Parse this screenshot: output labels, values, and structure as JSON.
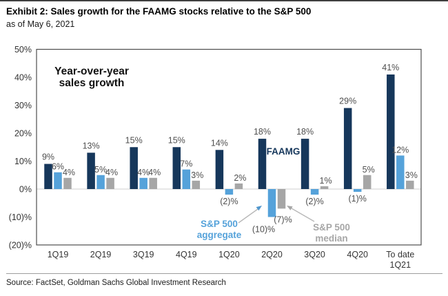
{
  "header": {
    "title": "Exhibit 2: Sales growth for the FAAMG stocks relative to the S&P 500",
    "subtitle": "as of May 6, 2021"
  },
  "source": "Source: FactSet, Goldman Sachs Global Investment Research",
  "colors": {
    "faamg": "#16375B",
    "sp500_aggregate": "#55A2DA",
    "sp500_median": "#A6A6A6",
    "value_label": "#4F4F4F",
    "axis_text": "#333333",
    "plot_border": "#4D4D4D",
    "zero_line": "#CFCFCF",
    "arrow": "#B8B8B8",
    "aggregate_arrowhead": "#5096CD"
  },
  "chart_data": {
    "type": "bar",
    "title": "Exhibit 2: Sales growth for the FAAMG stocks relative to the S&P 500",
    "subtitle": "as of May 6, 2021",
    "xlabel": "",
    "ylabel": "Year-over-year sales growth (%)",
    "ylim": [
      -20,
      50
    ],
    "grid": "zero line only",
    "legend_position": "in-plot text annotations with arrows",
    "categories": [
      "1Q19",
      "2Q19",
      "3Q19",
      "4Q19",
      "1Q20",
      "2Q20",
      "3Q20",
      "4Q20",
      "To date\n1Q21"
    ],
    "series": [
      {
        "name": "FAAMG",
        "color": "#16375B",
        "values": [
          9,
          13,
          15,
          15,
          14,
          18,
          18,
          29,
          41
        ],
        "labels": [
          "9%",
          "13%",
          "15%",
          "15%",
          "14%",
          "18%",
          "18%",
          "29%",
          "41%"
        ]
      },
      {
        "name": "S&P 500 aggregate",
        "color": "#55A2DA",
        "values": [
          6,
          5,
          4,
          7,
          -2,
          -10,
          -2,
          -1,
          12
        ],
        "labels": [
          "6%",
          "5%",
          "4%",
          "7%",
          "(2)%",
          "(10)%",
          "(2)%",
          "(1)%",
          "12%"
        ]
      },
      {
        "name": "S&P 500 median",
        "color": "#A6A6A6",
        "values": [
          4,
          4,
          4,
          3,
          2,
          -7,
          1,
          5,
          3
        ],
        "labels": [
          "4%",
          "4%",
          "4%",
          "3%",
          "2%",
          "(7)%",
          "1%",
          "5%",
          "3%"
        ]
      }
    ],
    "y_ticks": [
      {
        "value": 50,
        "label": "50%"
      },
      {
        "value": 40,
        "label": "40%"
      },
      {
        "value": 30,
        "label": "30%"
      },
      {
        "value": 20,
        "label": "20%"
      },
      {
        "value": 10,
        "label": "10%"
      },
      {
        "value": 0,
        "label": "0%"
      },
      {
        "value": -10,
        "label": "(10)%"
      },
      {
        "value": -20,
        "label": "(20)%"
      }
    ],
    "annotations": {
      "plot_note": "Year-over-year\nsales growth",
      "faamg_label": "FAAMG",
      "aggregate_label": "S&P 500\naggregate",
      "median_label": "S&P 500\nmedian"
    }
  }
}
